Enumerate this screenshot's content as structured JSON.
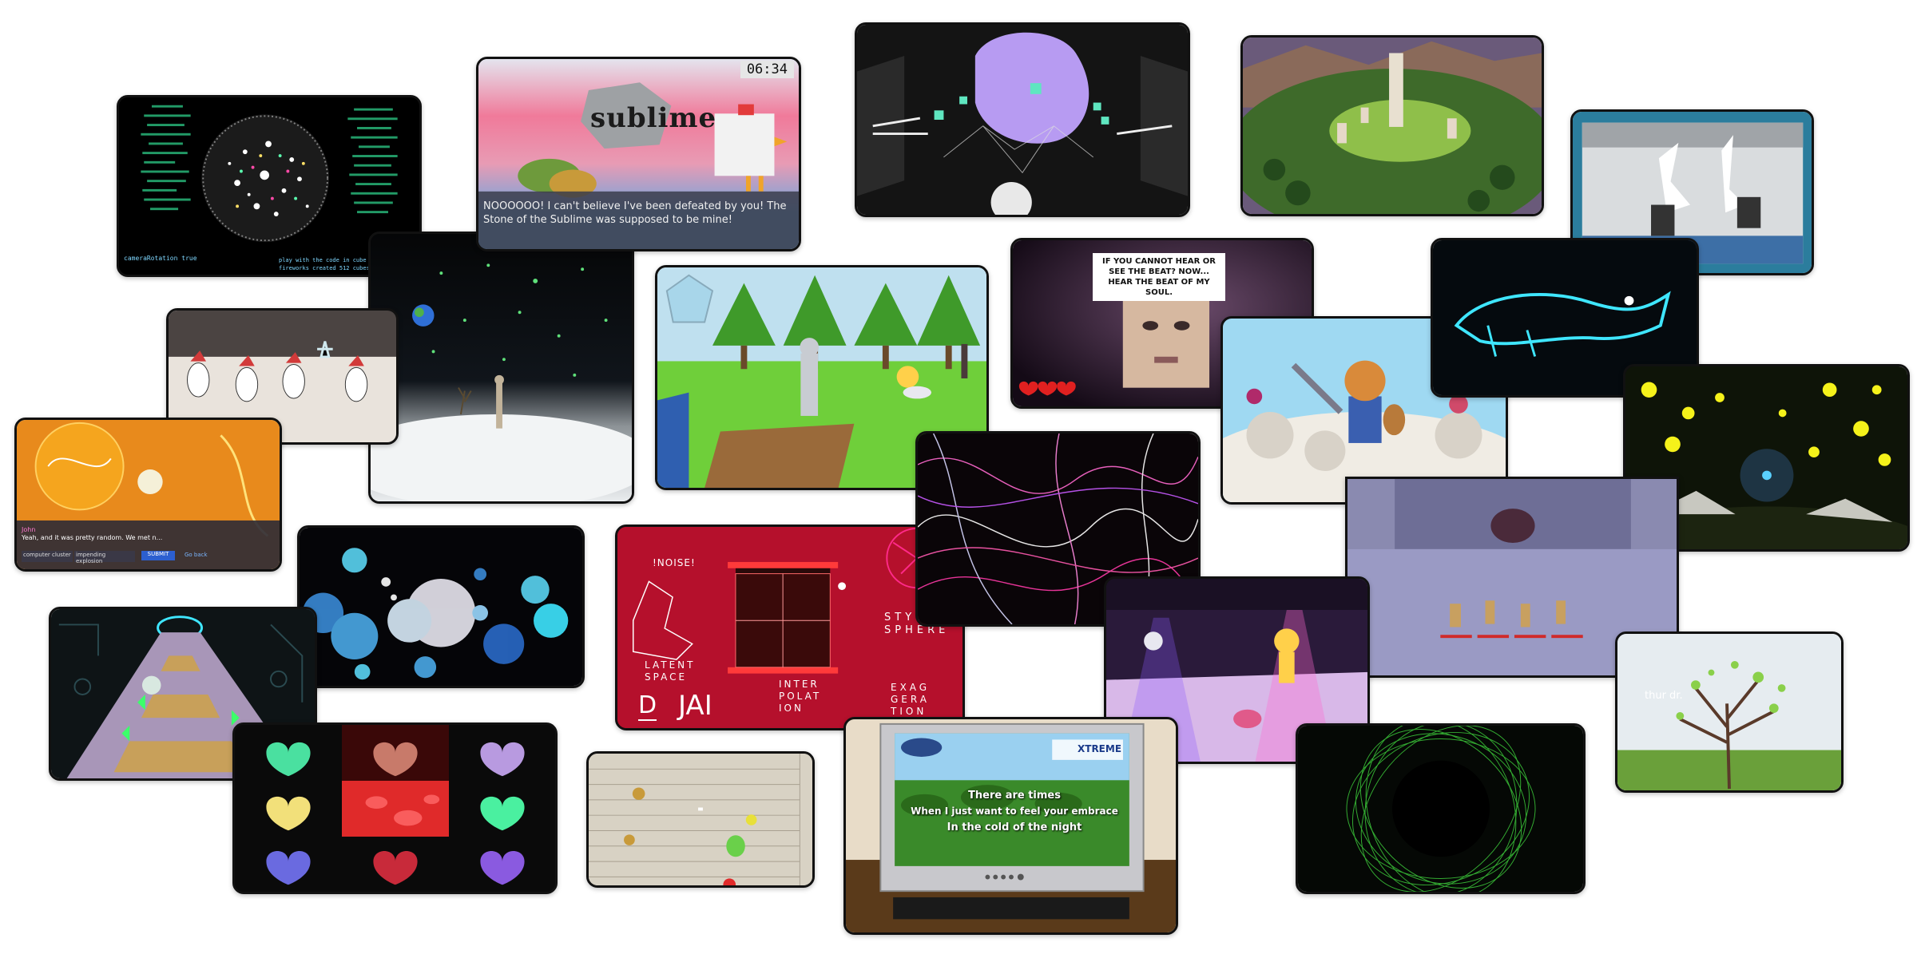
{
  "tiles": {
    "fireworks_sphere": {
      "hud_bottom_left": "cameraRotation true",
      "hud_bottom_center": "play with the code in cube",
      "hud_bottom_right": "fireworks created 512 cubes"
    },
    "sublime": {
      "timer": "06:34",
      "title_word": "sublime",
      "dialogue": "NOOOOOO! I can't believe I've been defeated by you! The Stone of the Sublime was supposed to be mine!"
    },
    "orange_chat": {
      "user": "John",
      "message": "Yeah, and it was pretty random. We met n...",
      "field_1": "computer cluster",
      "field_2": "impending explosion",
      "submit_label": "SUBMIT",
      "link_label": "Go back"
    },
    "soul_stream": {
      "caption": "IF YOU CANNOT HEAR OR SEE THE BEAT? NOW... HEAR THE BEAT OF MY SOUL."
    },
    "dj_ai": {
      "noise_label": "!NOISE!",
      "latent_label": "LATENT\nSPACE",
      "interp_label": "INTER\nPOLAT\nION",
      "style_label": "STYLE\nSPHERE",
      "exag_label": "EXAG\nGERA\nTION",
      "logo_d": "D",
      "logo_jai": "JAI"
    },
    "karaoke": {
      "lyric_1": "There are times",
      "lyric_2": "When I just want to feel your embrace",
      "lyric_3": "In the cold of the night",
      "badge_right": "XTREME"
    },
    "tree": {
      "caption": "thur dr."
    }
  },
  "colors": {
    "background": "#ffffff",
    "tile_border": "#111111",
    "dj_ai_red": "#b5102c",
    "neon_green": "#3cff6a",
    "neon_cyan": "#3fe6ff",
    "firefly_yellow": "#f5f21a"
  }
}
